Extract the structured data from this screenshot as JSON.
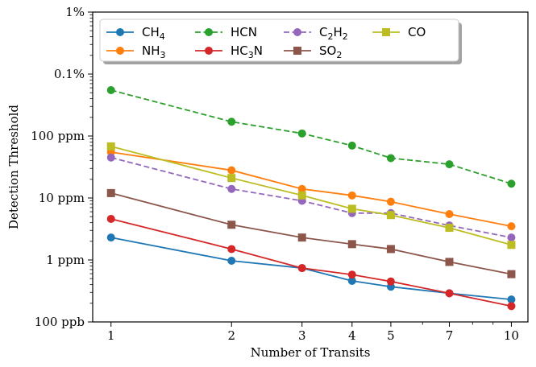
{
  "chart_data": {
    "type": "line",
    "xscale": "log",
    "yscale": "log",
    "xlabel": "Number of Transits",
    "ylabel": "Detection Threshold",
    "x": [
      1,
      2,
      3,
      4,
      5,
      7,
      10
    ],
    "xticklabels": [
      "1",
      "2",
      "3",
      "4",
      "5",
      "7",
      "10"
    ],
    "xlim": [
      0.9,
      11
    ],
    "ylim": [
      0.1,
      10000
    ],
    "yticks": [
      {
        "value": 0.1,
        "label": "100 ppb"
      },
      {
        "value": 1,
        "label": "1 ppm"
      },
      {
        "value": 10,
        "label": "10 ppm"
      },
      {
        "value": 100,
        "label": "100 ppm"
      },
      {
        "value": 1000,
        "label": "0.1%"
      },
      {
        "value": 10000,
        "label": "1%"
      }
    ],
    "grid": false,
    "legend_position": "top-left",
    "series": [
      {
        "name": "CH4",
        "sub_base": "CH",
        "sub_num": "4",
        "sub_tail": "",
        "color": "#1f77b4",
        "dash": "solid",
        "marker": "circle",
        "values": [
          2.3,
          0.97,
          0.74,
          0.46,
          0.37,
          0.29,
          0.23
        ]
      },
      {
        "name": "NH3",
        "sub_base": "NH",
        "sub_num": "3",
        "sub_tail": "",
        "color": "#ff7f0e",
        "dash": "solid",
        "marker": "circle",
        "values": [
          55,
          28,
          14,
          11,
          8.7,
          5.5,
          3.5
        ]
      },
      {
        "name": "HCN",
        "sub_base": "HCN",
        "sub_num": "",
        "sub_tail": "",
        "color": "#2ca02c",
        "dash": "dashed",
        "marker": "circle",
        "values": [
          550,
          170,
          110,
          70,
          44,
          35,
          17
        ]
      },
      {
        "name": "HC3N",
        "sub_base": "HC",
        "sub_num": "3",
        "sub_tail": "N",
        "color": "#d62728",
        "dash": "solid",
        "marker": "circle",
        "values": [
          4.6,
          1.5,
          0.74,
          0.58,
          0.45,
          0.29,
          0.18
        ]
      },
      {
        "name": "C2H2",
        "sub_base": "C",
        "sub_num": "2",
        "sub_tail": "H",
        "sub_num2": "2",
        "color": "#9467bd",
        "dash": "dashed",
        "marker": "circle",
        "values": [
          45,
          14,
          9,
          5.7,
          5.7,
          3.6,
          2.3
        ]
      },
      {
        "name": "SO2",
        "sub_base": "SO",
        "sub_num": "2",
        "sub_tail": "",
        "color": "#8c564b",
        "dash": "solid",
        "marker": "square",
        "values": [
          12,
          3.7,
          2.3,
          1.8,
          1.5,
          0.93,
          0.59
        ]
      },
      {
        "name": "CO",
        "sub_base": "CO",
        "sub_num": "",
        "sub_tail": "",
        "color": "#bcbd22",
        "dash": "solid",
        "marker": "square",
        "values": [
          68,
          21,
          11,
          6.7,
          5.3,
          3.3,
          1.75
        ]
      }
    ]
  }
}
